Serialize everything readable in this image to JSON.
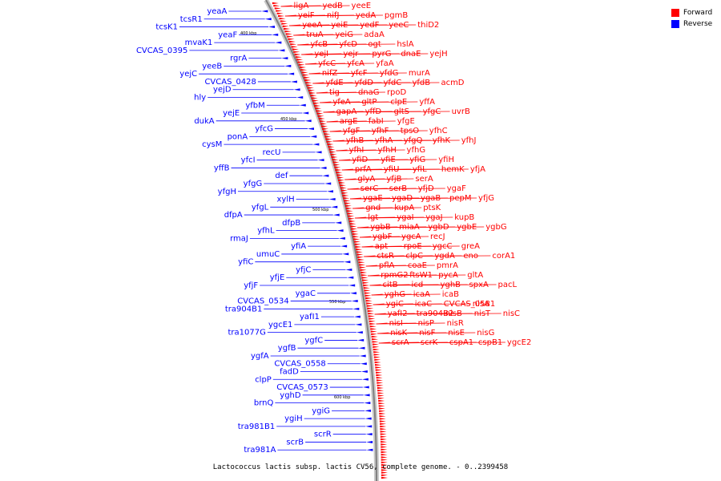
{
  "legend": {
    "forward": {
      "label": "Forward",
      "color": "#ff0000"
    },
    "reverse": {
      "label": "Reverse",
      "color": "#0000ff"
    }
  },
  "caption": "Lactococcus lactis subsp. lactis CV56, complete genome. - 0..2399458",
  "ticks": [
    "400 kbp",
    "450 kbp",
    "500 kbp",
    "550 kbp",
    "600 kbp"
  ],
  "forward_genes": [
    "ligA",
    "yedB",
    "yeeE",
    "yeiF",
    "nifJ",
    "yedA",
    "pgmB",
    "yeeA",
    "yeiE",
    "yedF",
    "yeeC",
    "thiD2",
    "truA",
    "yeiG",
    "adaA",
    "yfcB",
    "yfcD",
    "ogt",
    "hslA",
    "yejI",
    "yejr",
    "pyrG",
    "dnaE",
    "yejH",
    "yfcC",
    "yfcA",
    "yfaA",
    "nifZ",
    "yfcF",
    "yfdG",
    "murA",
    "yfdE",
    "yfdD",
    "yfdC",
    "yfdB",
    "acmD",
    "tig",
    "dnaG",
    "rpoD",
    "yfeA",
    "gltP",
    "clpE",
    "yffA",
    "gapA",
    "yffD",
    "gltS",
    "yfgC",
    "uvrB",
    "argE",
    "fabI",
    "yfgE",
    "yfgF",
    "yfhF",
    "tpsO",
    "yfhC",
    "yfhB",
    "yfhA",
    "yfgQ",
    "yfhK",
    "yfhJ",
    "yfhI",
    "yfhH",
    "yfhG",
    "yfiD",
    "yfiE",
    "yfiG",
    "yfiH",
    "prfA",
    "yfiU",
    "yfiL",
    "hemK",
    "yfjA",
    "glyA",
    "yfjB",
    "serA",
    "serC",
    "serB",
    "yfjD",
    "ygaF",
    "ygaE",
    "ygaD",
    "ygaB",
    "pepM",
    "yfjG",
    "gnd",
    "kupA",
    "ptsK",
    "lgt",
    "ygaI",
    "ygaJ",
    "kupB",
    "ygbB",
    "miaA",
    "ygbD",
    "ygbE",
    "ygbG",
    "ygbF",
    "ygcA",
    "recJ",
    "apt",
    "rpoE",
    "ygcC",
    "greA",
    "ctsR",
    "clpC",
    "ygdA",
    "eno",
    "corA1",
    "pflA",
    "coaE",
    "pmrA",
    "rpmG2",
    "ftsW1",
    "pycA",
    "gltA",
    "citB",
    "icd",
    "yghB",
    "spxA",
    "pacL",
    "yghG",
    "icaA",
    "icaB",
    "ygiC",
    "icaC",
    "CVCAS_0581",
    "nisA",
    "yafI2",
    "tra904B2",
    "nisB",
    "nisT",
    "nisC",
    "nisI",
    "nisP",
    "nisR",
    "nisK",
    "nisF",
    "nisE",
    "nisG",
    "scrA",
    "scrK",
    "cspA1",
    "cspB1",
    "ygcE2"
  ],
  "reverse_genes": [
    "yeaA",
    "tcsR1",
    "tcsK1",
    "yeaF",
    "mvaK1",
    "CVCAS_0395",
    "rgrA",
    "yeeB",
    "yejC",
    "CVCAS_0428",
    "yejD",
    "hly",
    "yfbM",
    "yejE",
    "dukA",
    "yfcG",
    "ponA",
    "cysM",
    "recU",
    "yfcI",
    "yffB",
    "def",
    "yfgG",
    "yfgH",
    "xylH",
    "yfgL",
    "dfpA",
    "dfpB",
    "yfhL",
    "rmaJ",
    "yfiA",
    "umuC",
    "yfiC",
    "yfjC",
    "yfjE",
    "yfjF",
    "ygaC",
    "CVCAS_0534",
    "tra904B1",
    "yafI1",
    "ygcE1",
    "tra1077G",
    "ygfC",
    "ygfB",
    "ygfA",
    "CVCAS_0558",
    "fadD",
    "clpP",
    "CVCAS_0573",
    "yghD",
    "brnQ",
    "ygiG",
    "ygiH",
    "tra981B1",
    "scrR",
    "scrB",
    "tra981A"
  ]
}
